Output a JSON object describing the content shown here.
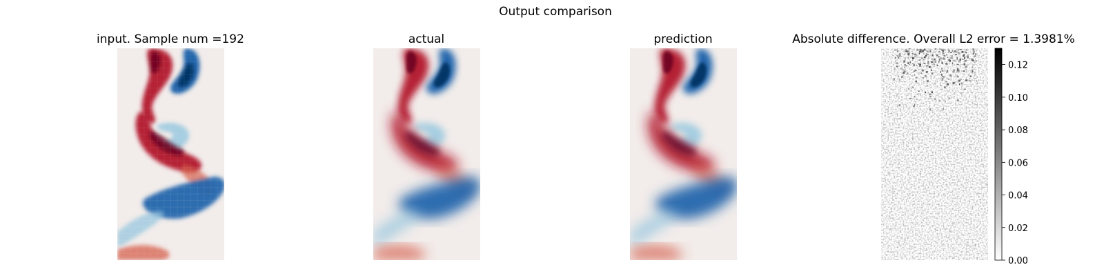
{
  "figure": {
    "suptitle": "Output comparison"
  },
  "chart_data": [
    {
      "type": "heatmap",
      "title": "input. Sample num =192",
      "colormap": "red-white-blue (diverging)",
      "resolution": "coarse",
      "axes": "off"
    },
    {
      "type": "heatmap",
      "title": "actual",
      "colormap": "red-white-blue (diverging)",
      "axes": "off"
    },
    {
      "type": "heatmap",
      "title": "prediction",
      "colormap": "red-white-blue (diverging)",
      "axes": "off"
    },
    {
      "type": "heatmap",
      "title": "Absolute difference. Overall L2 error = 1.3981%",
      "colormap": "white-to-black (grayscale)",
      "axes": "off",
      "colorbar": {
        "range": [
          0.0,
          0.13
        ],
        "ticks": [
          0.0,
          0.02,
          0.04,
          0.06,
          0.08,
          0.1,
          0.12
        ],
        "tick_labels": [
          "0.00",
          "0.02",
          "0.04",
          "0.06",
          "0.08",
          "0.10",
          "0.12"
        ]
      }
    }
  ],
  "colors": {
    "red_dark": "#67001f",
    "red": "#b2182b",
    "red_light": "#d6604d",
    "neutral": "#f2ecea",
    "blue_light": "#92c5de",
    "blue": "#2166ac",
    "blue_dark": "#053061"
  }
}
